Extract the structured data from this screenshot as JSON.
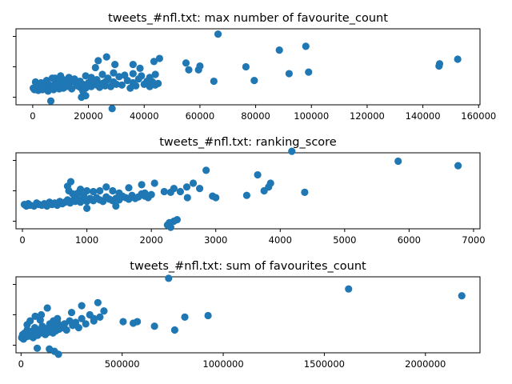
{
  "chart_data": [
    {
      "type": "scatter",
      "title": "tweets_#nfl.txt: max number of favourite_count",
      "xlim": [
        -6000,
        160500
      ],
      "ylim": [
        0,
        1.0
      ],
      "xticks": [
        0,
        20000,
        40000,
        60000,
        80000,
        100000,
        120000,
        140000,
        160000
      ],
      "xtick_labels": [
        "0",
        "20000",
        "40000",
        "60000",
        "80000",
        "100000",
        "120000",
        "140000",
        "160000"
      ],
      "ytick_count": 3,
      "x": [
        200,
        600,
        1000,
        1500,
        2000,
        2500,
        3000,
        3500,
        4000,
        4500,
        5000,
        5500,
        6000,
        6500,
        7000,
        7500,
        8000,
        8500,
        9000,
        9500,
        10000,
        11000,
        12000,
        13000,
        14000,
        15000,
        16000,
        17000,
        18000,
        19000,
        20000,
        21000,
        22000,
        23000,
        24000,
        25000,
        26000,
        27000,
        28000,
        29000,
        30000,
        32000,
        34000,
        35000,
        36000,
        37000,
        38000,
        40000,
        41000,
        42000,
        43000,
        44000,
        45000,
        3000,
        5000,
        7000,
        9000,
        11000,
        13000,
        15000,
        17000,
        19000,
        21000,
        23000,
        25000,
        27000,
        29000,
        31000,
        33000,
        36000,
        39000,
        42000,
        44000,
        6500,
        17500,
        19000,
        18000,
        28500,
        1000,
        3000,
        8000,
        10000,
        22500,
        23500,
        26500,
        36000,
        38500,
        43500,
        45500,
        29500,
        22000,
        26000,
        12500,
        14500,
        55000,
        56000,
        60000,
        59500,
        65000,
        66500,
        76500,
        79500,
        88500,
        98000,
        92000,
        99000,
        145800,
        146000,
        152500
      ],
      "y": [
        0.22,
        0.2,
        0.23,
        0.21,
        0.19,
        0.24,
        0.22,
        0.2,
        0.25,
        0.21,
        0.23,
        0.18,
        0.26,
        0.22,
        0.24,
        0.2,
        0.27,
        0.23,
        0.25,
        0.21,
        0.28,
        0.22,
        0.24,
        0.26,
        0.21,
        0.3,
        0.25,
        0.23,
        0.27,
        0.22,
        0.29,
        0.24,
        0.31,
        0.26,
        0.23,
        0.28,
        0.25,
        0.33,
        0.24,
        0.3,
        0.27,
        0.26,
        0.32,
        0.22,
        0.29,
        0.25,
        0.34,
        0.27,
        0.31,
        0.24,
        0.3,
        0.26,
        0.28,
        0.29,
        0.32,
        0.35,
        0.3,
        0.33,
        0.36,
        0.34,
        0.31,
        0.38,
        0.36,
        0.33,
        0.4,
        0.35,
        0.42,
        0.37,
        0.39,
        0.41,
        0.38,
        0.36,
        0.4,
        0.05,
        0.1,
        0.12,
        0.18,
        -0.05,
        0.3,
        0.28,
        0.35,
        0.38,
        0.49,
        0.58,
        0.63,
        0.53,
        0.48,
        0.57,
        0.61,
        0.53,
        0.31,
        0.3,
        0.29,
        0.32,
        0.55,
        0.46,
        0.51,
        0.46,
        0.31,
        0.93,
        0.5,
        0.32,
        0.72,
        0.77,
        0.41,
        0.43,
        0.51,
        0.54,
        0.6
      ],
      "marker": "circle",
      "color": "#1f77b4"
    },
    {
      "type": "scatter",
      "title": "tweets_#nfl.txt: ranking_score",
      "xlim": [
        -100,
        7100
      ],
      "ylim": [
        0,
        1.0
      ],
      "xticks": [
        0,
        1000,
        2000,
        3000,
        4000,
        5000,
        6000,
        7000
      ],
      "xtick_labels": [
        "0",
        "1000",
        "2000",
        "3000",
        "4000",
        "5000",
        "6000",
        "7000"
      ],
      "ytick_count": 3,
      "x": [
        30,
        60,
        90,
        120,
        180,
        220,
        260,
        300,
        340,
        380,
        420,
        460,
        500,
        540,
        580,
        620,
        660,
        700,
        740,
        780,
        820,
        860,
        900,
        950,
        1000,
        1050,
        1100,
        1150,
        1200,
        1250,
        1300,
        1350,
        1400,
        1450,
        1500,
        1550,
        1600,
        1650,
        1700,
        1750,
        1800,
        1850,
        1900,
        1950,
        2000,
        700,
        750,
        720,
        780,
        820,
        860,
        900,
        950,
        1000,
        1100,
        1200,
        1300,
        1400,
        1500,
        1650,
        1850,
        2050,
        1900,
        2200,
        2300,
        2350,
        2450,
        2550,
        2650,
        2750,
        2850,
        2950,
        1550,
        1000,
        1450,
        2350,
        2300,
        2250,
        2280,
        2400,
        2560,
        3000,
        3480,
        3650,
        3750,
        3820,
        3850,
        4180,
        4380,
        5830,
        6760
      ],
      "y": [
        0.32,
        0.3,
        0.33,
        0.31,
        0.3,
        0.34,
        0.32,
        0.31,
        0.33,
        0.3,
        0.35,
        0.32,
        0.34,
        0.31,
        0.36,
        0.33,
        0.35,
        0.38,
        0.34,
        0.37,
        0.36,
        0.39,
        0.35,
        0.38,
        0.36,
        0.4,
        0.37,
        0.41,
        0.38,
        0.36,
        0.42,
        0.39,
        0.37,
        0.4,
        0.38,
        0.43,
        0.41,
        0.39,
        0.44,
        0.4,
        0.42,
        0.46,
        0.43,
        0.41,
        0.45,
        0.56,
        0.62,
        0.5,
        0.46,
        0.45,
        0.47,
        0.52,
        0.44,
        0.5,
        0.49,
        0.5,
        0.55,
        0.5,
        0.47,
        0.54,
        0.58,
        0.6,
        0.47,
        0.49,
        0.48,
        0.53,
        0.49,
        0.55,
        0.6,
        0.53,
        0.77,
        0.43,
        0.42,
        0.27,
        0.3,
        0.1,
        0.02,
        0.05,
        0.08,
        0.12,
        0.41,
        0.41,
        0.44,
        0.71,
        0.5,
        0.55,
        0.6,
        1.02,
        0.48,
        0.89,
        0.83
      ],
      "marker": "circle",
      "color": "#1f77b4"
    },
    {
      "type": "scatter",
      "title": "tweets_#nfl.txt: sum of favourites_count",
      "xlim": [
        -25000,
        2270000
      ],
      "ylim": [
        0,
        1.0
      ],
      "xticks": [
        0,
        500000,
        1000000,
        1500000,
        2000000
      ],
      "xtick_labels": [
        "0",
        "500000",
        "1000000",
        "1500000",
        "2000000"
      ],
      "ytick_count": 3,
      "x": [
        3000,
        8000,
        12000,
        18000,
        25000,
        30000,
        38000,
        45000,
        52000,
        60000,
        68000,
        75000,
        82000,
        90000,
        98000,
        105000,
        112000,
        120000,
        128000,
        135000,
        142000,
        150000,
        158000,
        165000,
        172000,
        180000,
        188000,
        195000,
        205000,
        215000,
        225000,
        240000,
        255000,
        270000,
        285000,
        300000,
        320000,
        340000,
        360000,
        390000,
        410000,
        30000,
        45000,
        70000,
        95000,
        100000,
        130000,
        160000,
        180000,
        250000,
        300000,
        360000,
        380000,
        505000,
        555000,
        575000,
        660000,
        760000,
        810000,
        925000,
        730000,
        1620000,
        2180000,
        80000,
        140000,
        165000,
        185000
      ],
      "y": [
        0.2,
        0.24,
        0.18,
        0.26,
        0.21,
        0.3,
        0.22,
        0.28,
        0.25,
        0.2,
        0.33,
        0.27,
        0.23,
        0.3,
        0.26,
        0.35,
        0.29,
        0.24,
        0.32,
        0.27,
        0.38,
        0.3,
        0.26,
        0.34,
        0.29,
        0.4,
        0.31,
        0.36,
        0.33,
        0.38,
        0.3,
        0.42,
        0.36,
        0.4,
        0.33,
        0.45,
        0.38,
        0.5,
        0.42,
        0.47,
        0.55,
        0.37,
        0.42,
        0.48,
        0.43,
        0.5,
        0.59,
        0.42,
        0.45,
        0.53,
        0.62,
        0.45,
        0.66,
        0.41,
        0.39,
        0.41,
        0.35,
        0.3,
        0.47,
        0.49,
        0.98,
        0.84,
        0.75,
        0.06,
        0.05,
        0.02,
        -0.02
      ],
      "marker": "circle",
      "color": "#1f77b4"
    }
  ]
}
